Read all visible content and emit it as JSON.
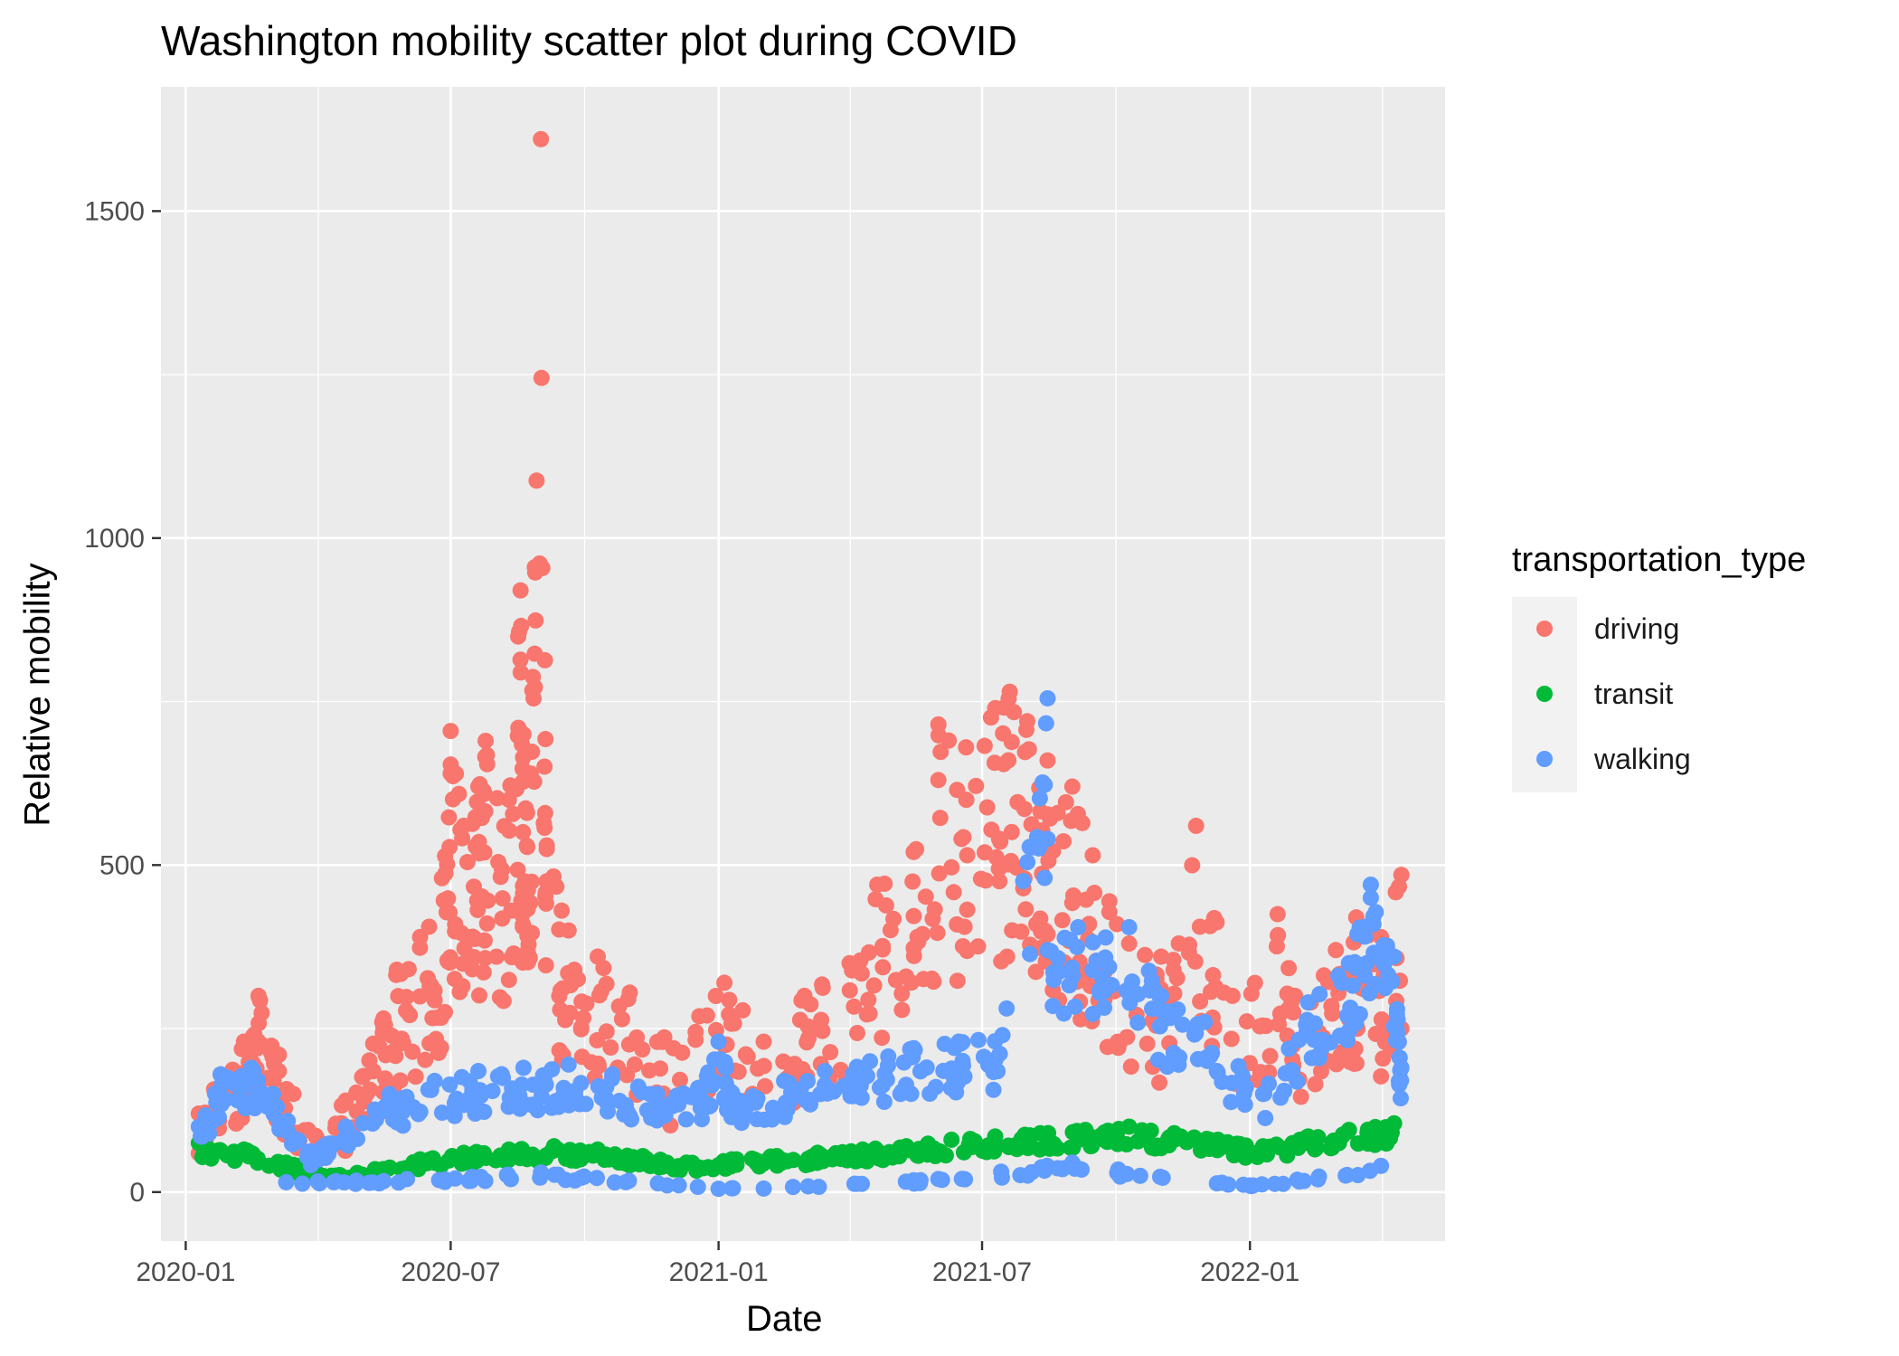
{
  "chart_data": {
    "type": "scatter",
    "title": "Washington mobility scatter plot during COVID",
    "xlabel": "Date",
    "ylabel": "Relative mobility",
    "x_axis": {
      "scale": "date",
      "range": [
        "2019-12-15",
        "2022-05-15"
      ],
      "ticks": [
        "2020-01",
        "2020-07",
        "2021-01",
        "2021-07",
        "2022-01"
      ]
    },
    "y_axis": {
      "range": [
        -75,
        1690
      ],
      "ticks": [
        0,
        500,
        1000,
        1500
      ]
    },
    "grid": true,
    "legend": {
      "title": "transportation_type",
      "placement": "right"
    },
    "series": [
      {
        "name": "driving",
        "color": "#F8766D",
        "points": [
          [
            "2020-01-10",
            120
          ],
          [
            "2020-01-25",
            180
          ],
          [
            "2020-02-10",
            230
          ],
          [
            "2020-02-20",
            300
          ],
          [
            "2020-03-05",
            210
          ],
          [
            "2020-03-25",
            95
          ],
          [
            "2020-04-20",
            140
          ],
          [
            "2020-05-15",
            260
          ],
          [
            "2020-05-25",
            340
          ],
          [
            "2020-06-10",
            390
          ],
          [
            "2020-06-25",
            480
          ],
          [
            "2020-07-01",
            640
          ],
          [
            "2020-07-01",
            705
          ],
          [
            "2020-07-10",
            560
          ],
          [
            "2020-07-20",
            620
          ],
          [
            "2020-07-25",
            690
          ],
          [
            "2020-08-10",
            600
          ],
          [
            "2020-08-18",
            920
          ],
          [
            "2020-08-20",
            700
          ],
          [
            "2020-08-25",
            640
          ],
          [
            "2020-09-01",
            1610
          ],
          [
            "2020-09-05",
            530
          ],
          [
            "2020-09-20",
            400
          ],
          [
            "2020-10-10",
            360
          ],
          [
            "2020-11-01",
            305
          ],
          [
            "2020-12-01",
            220
          ],
          [
            "2021-01-05",
            320
          ],
          [
            "2021-02-01",
            230
          ],
          [
            "2021-03-01",
            300
          ],
          [
            "2021-04-01",
            350
          ],
          [
            "2021-04-20",
            470
          ],
          [
            "2021-05-15",
            520
          ],
          [
            "2021-06-01",
            630
          ],
          [
            "2021-06-01",
            715
          ],
          [
            "2021-06-20",
            680
          ],
          [
            "2021-07-10",
            740
          ],
          [
            "2021-07-20",
            765
          ],
          [
            "2021-08-01",
            720
          ],
          [
            "2021-08-15",
            660
          ],
          [
            "2021-09-01",
            620
          ],
          [
            "2021-09-15",
            515
          ],
          [
            "2021-10-10",
            380
          ],
          [
            "2021-11-01",
            360
          ],
          [
            "2021-11-25",
            560
          ],
          [
            "2021-12-20",
            300
          ],
          [
            "2022-01-20",
            425
          ],
          [
            "2022-02-01",
            300
          ],
          [
            "2022-03-01",
            370
          ],
          [
            "2022-03-15",
            420
          ],
          [
            "2022-04-01",
            390
          ],
          [
            "2022-04-15",
            485
          ],
          [
            "2022-04-15",
            250
          ]
        ]
      },
      {
        "name": "transit",
        "color": "#00BA38",
        "points": [
          [
            "2020-01-10",
            75
          ],
          [
            "2020-02-10",
            65
          ],
          [
            "2020-03-10",
            45
          ],
          [
            "2020-04-10",
            25
          ],
          [
            "2020-05-10",
            35
          ],
          [
            "2020-06-10",
            50
          ],
          [
            "2020-07-10",
            60
          ],
          [
            "2020-08-10",
            65
          ],
          [
            "2020-09-10",
            70
          ],
          [
            "2020-10-10",
            65
          ],
          [
            "2020-11-10",
            55
          ],
          [
            "2020-12-10",
            45
          ],
          [
            "2021-01-10",
            50
          ],
          [
            "2021-02-10",
            55
          ],
          [
            "2021-03-10",
            60
          ],
          [
            "2021-04-10",
            65
          ],
          [
            "2021-05-10",
            70
          ],
          [
            "2021-06-10",
            80
          ],
          [
            "2021-07-10",
            85
          ],
          [
            "2021-08-10",
            90
          ],
          [
            "2021-09-10",
            95
          ],
          [
            "2021-10-10",
            100
          ],
          [
            "2021-11-10",
            90
          ],
          [
            "2021-12-10",
            80
          ],
          [
            "2022-01-10",
            70
          ],
          [
            "2022-02-10",
            85
          ],
          [
            "2022-03-10",
            95
          ],
          [
            "2022-04-10",
            105
          ]
        ]
      },
      {
        "name": "walking",
        "color": "#619CFF",
        "points": [
          [
            "2020-01-10",
            100
          ],
          [
            "2020-01-25",
            180
          ],
          [
            "2020-02-15",
            190
          ],
          [
            "2020-03-01",
            150
          ],
          [
            "2020-03-25",
            60
          ],
          [
            "2020-04-20",
            100
          ],
          [
            "2020-05-20",
            150
          ],
          [
            "2020-06-20",
            170
          ],
          [
            "2020-07-20",
            185
          ],
          [
            "2020-08-20",
            190
          ],
          [
            "2020-09-20",
            195
          ],
          [
            "2020-10-20",
            180
          ],
          [
            "2020-11-20",
            150
          ],
          [
            "2020-12-20",
            160
          ],
          [
            "2021-01-01",
            230
          ],
          [
            "2021-01-15",
            140
          ],
          [
            "2021-02-15",
            170
          ],
          [
            "2021-03-15",
            185
          ],
          [
            "2021-04-15",
            200
          ],
          [
            "2021-05-15",
            220
          ],
          [
            "2021-06-15",
            230
          ],
          [
            "2021-07-15",
            240
          ],
          [
            "2021-08-15",
            755
          ],
          [
            "2021-08-15",
            540
          ],
          [
            "2021-08-15",
            370
          ],
          [
            "2021-09-05",
            405
          ],
          [
            "2021-10-10",
            405
          ],
          [
            "2021-11-01",
            300
          ],
          [
            "2021-12-01",
            260
          ],
          [
            "2022-01-10",
            150
          ],
          [
            "2022-02-10",
            290
          ],
          [
            "2022-03-10",
            350
          ],
          [
            "2022-03-25",
            470
          ],
          [
            "2022-03-25",
            450
          ],
          [
            "2022-04-10",
            360
          ],
          [
            "2022-04-15",
            190
          ],
          [
            "2020-03-10",
            15
          ],
          [
            "2020-06-01",
            20
          ],
          [
            "2020-09-01",
            30
          ],
          [
            "2021-01-01",
            5
          ],
          [
            "2021-06-01",
            20
          ],
          [
            "2021-09-01",
            45
          ],
          [
            "2022-01-01",
            10
          ],
          [
            "2022-04-01",
            40
          ]
        ]
      }
    ]
  }
}
